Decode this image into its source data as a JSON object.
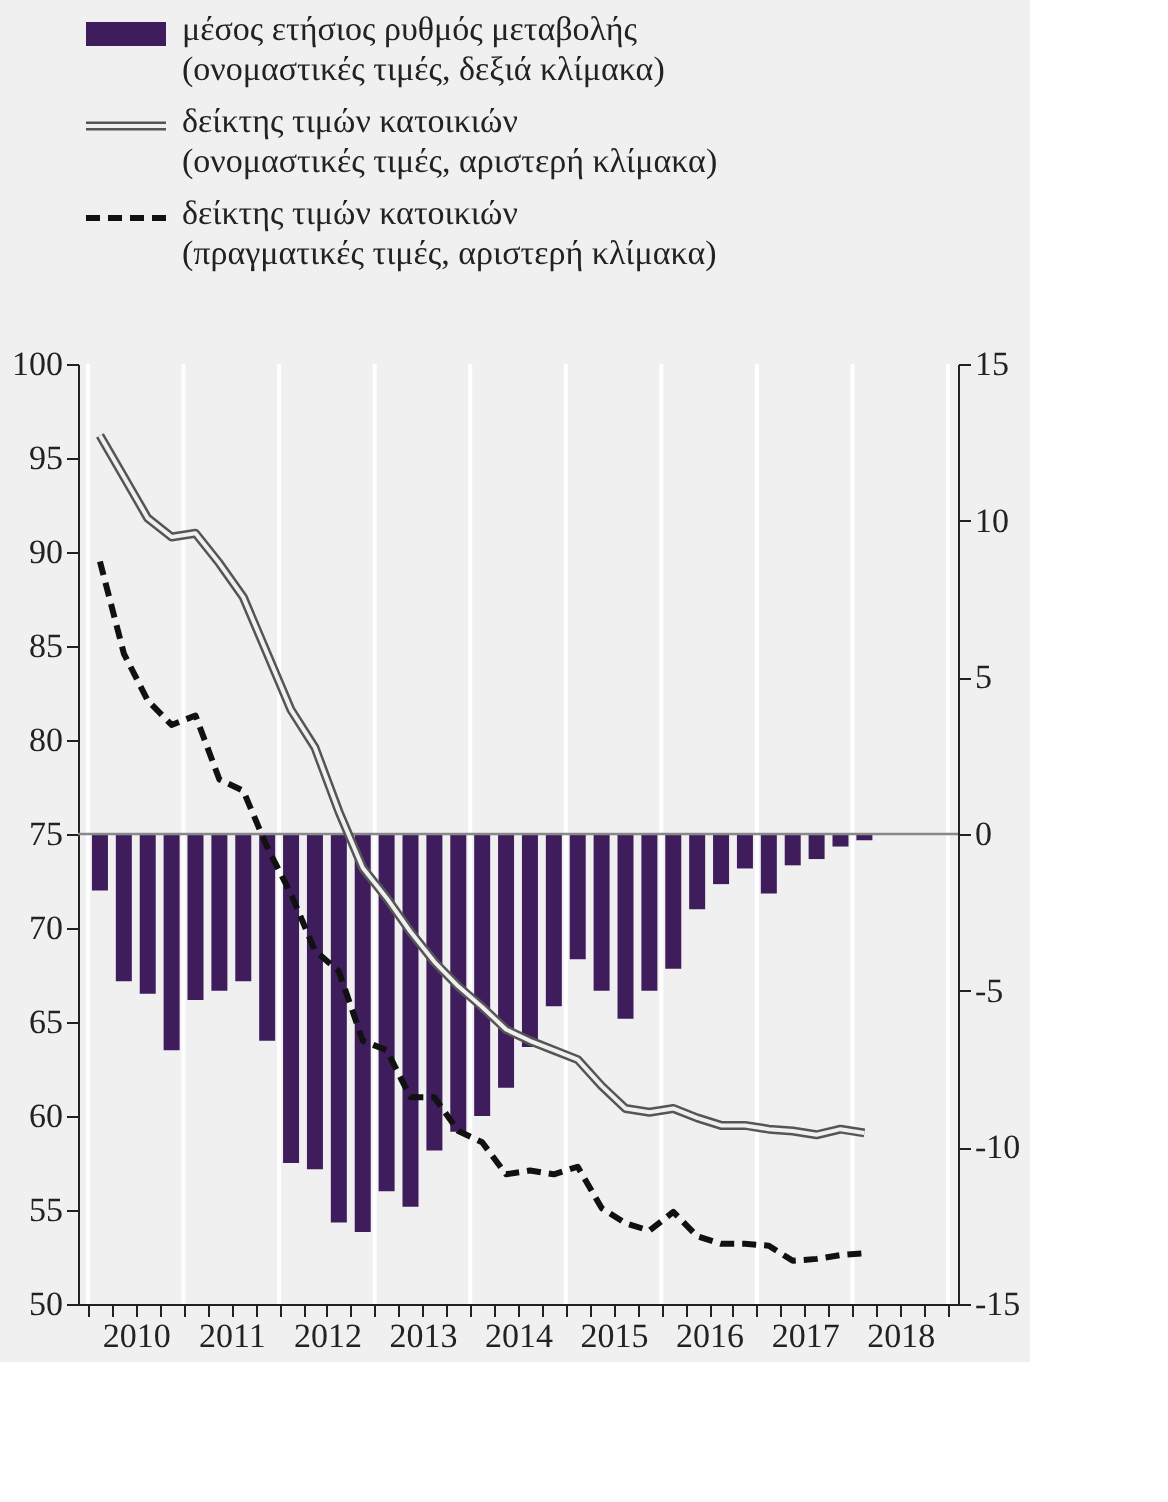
{
  "chart_data": {
    "type": "bar",
    "x": [
      2010.125,
      2010.375,
      2010.625,
      2010.875,
      2011.125,
      2011.375,
      2011.625,
      2011.875,
      2012.125,
      2012.375,
      2012.625,
      2012.875,
      2013.125,
      2013.375,
      2013.625,
      2013.875,
      2014.125,
      2014.375,
      2014.625,
      2014.875,
      2015.125,
      2015.375,
      2015.625,
      2015.875,
      2016.125,
      2016.375,
      2016.625,
      2016.875,
      2017.125,
      2017.375,
      2017.625,
      2017.875,
      2018.125
    ],
    "series": [
      {
        "name": "μέσος ετήσιος ρυθμός μεταβολής (ονομαστικές τιμές, δεξιά κλίμακα)",
        "axis": "y2",
        "color": "#3f1d5c",
        "values": [
          -1.8,
          -4.7,
          -5.1,
          -6.9,
          -5.3,
          -5.0,
          -4.7,
          -6.6,
          -10.5,
          -10.7,
          -12.4,
          -12.7,
          -11.4,
          -11.9,
          -10.1,
          -9.5,
          -9.0,
          -8.1,
          -6.8,
          -5.5,
          -4.0,
          -5.0,
          -5.9,
          -5.0,
          -4.3,
          -2.4,
          -1.6,
          -1.1,
          -1.9,
          -1.0,
          -0.8,
          -0.4,
          -0.2
        ]
      },
      {
        "name": "δείκτης τιμών κατοικιών (ονομαστικές τιμές, αριστερή κλίμακα)",
        "type": "line",
        "line_style": "solid",
        "color": "#555555",
        "values": [
          96.2,
          94.0,
          91.8,
          90.8,
          91.0,
          89.4,
          87.6,
          84.6,
          81.6,
          79.6,
          76.2,
          73.2,
          71.6,
          69.8,
          68.2,
          66.9,
          65.8,
          64.6,
          64.0,
          63.5,
          63.0,
          61.6,
          60.4,
          60.2,
          60.4,
          59.9,
          59.5,
          59.5,
          59.3,
          59.2,
          59.0,
          59.3,
          59.1
        ]
      },
      {
        "name": "δείκτης τιμών κατοικιών (πραγματικές τιμές, αριστερή κλίμακα)",
        "type": "line",
        "line_style": "dashed",
        "color": "#111111",
        "values": [
          89.5,
          84.6,
          82.1,
          80.8,
          81.3,
          77.9,
          77.3,
          74.3,
          71.8,
          68.8,
          67.7,
          64.0,
          63.5,
          61.0,
          61.0,
          59.2,
          58.6,
          56.9,
          57.1,
          56.9,
          57.3,
          55.1,
          54.3,
          53.9,
          54.9,
          53.6,
          53.2,
          53.2,
          53.1,
          52.3,
          52.4,
          52.6,
          52.7
        ]
      }
    ],
    "xlim": [
      2010,
      2019
    ],
    "xticks": [
      {
        "value": 2010,
        "label": null
      },
      {
        "value": 2010.25,
        "label": null
      },
      {
        "value": 2010.5,
        "label": "2010"
      },
      {
        "value": 2010.75,
        "label": null
      },
      {
        "value": 2011,
        "label": null
      },
      {
        "value": 2011.25,
        "label": null
      },
      {
        "value": 2011.5,
        "label": "2011"
      },
      {
        "value": 2011.75,
        "label": null
      },
      {
        "value": 2012,
        "label": null
      },
      {
        "value": 2012.25,
        "label": null
      },
      {
        "value": 2012.5,
        "label": "2012"
      },
      {
        "value": 2012.75,
        "label": null
      },
      {
        "value": 2013,
        "label": null
      },
      {
        "value": 2013.25,
        "label": null
      },
      {
        "value": 2013.5,
        "label": "2013"
      },
      {
        "value": 2013.75,
        "label": null
      },
      {
        "value": 2014,
        "label": null
      },
      {
        "value": 2014.25,
        "label": null
      },
      {
        "value": 2014.5,
        "label": "2014"
      },
      {
        "value": 2014.75,
        "label": null
      },
      {
        "value": 2015,
        "label": null
      },
      {
        "value": 2015.25,
        "label": null
      },
      {
        "value": 2015.5,
        "label": "2015"
      },
      {
        "value": 2015.75,
        "label": null
      },
      {
        "value": 2016,
        "label": null
      },
      {
        "value": 2016.25,
        "label": null
      },
      {
        "value": 2016.5,
        "label": "2016"
      },
      {
        "value": 2016.75,
        "label": null
      },
      {
        "value": 2017,
        "label": null
      },
      {
        "value": 2017.25,
        "label": null
      },
      {
        "value": 2017.5,
        "label": "2017"
      },
      {
        "value": 2017.75,
        "label": null
      },
      {
        "value": 2018,
        "label": null
      },
      {
        "value": 2018.25,
        "label": null
      },
      {
        "value": 2018.5,
        "label": "2018"
      },
      {
        "value": 2018.75,
        "label": null
      },
      {
        "value": 2019,
        "label": null
      }
    ],
    "ylim": [
      50,
      100
    ],
    "yticks": [
      50,
      55,
      60,
      65,
      70,
      75,
      80,
      85,
      90,
      95,
      100
    ],
    "y2lim": [
      -15,
      15
    ],
    "y2ticks": [
      -15,
      -10,
      -5,
      0,
      5,
      10,
      15
    ],
    "ref_lines": [
      {
        "axis": "y2",
        "value": 0,
        "color": "#888888"
      }
    ],
    "grid": "x",
    "legend": "top left"
  }
}
